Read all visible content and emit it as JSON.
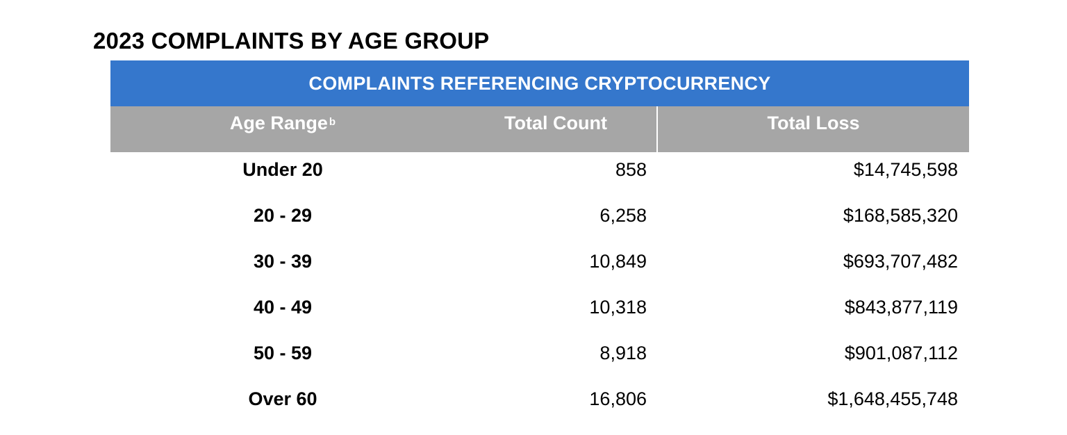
{
  "page_title": "2023 COMPLAINTS BY AGE GROUP",
  "colors": {
    "banner_bg": "#3577cc",
    "header_bg": "#a6a6a6",
    "header_text": "#ffffff"
  },
  "table": {
    "banner": "COMPLAINTS REFERENCING CRYPTOCURRENCY",
    "columns": [
      {
        "label": "Age Range",
        "footnote": "b"
      },
      {
        "label": "Total Count",
        "footnote": ""
      },
      {
        "label": "Total Loss",
        "footnote": ""
      }
    ],
    "rows": [
      {
        "age": "Under 20",
        "count": "858",
        "loss": "$14,745,598"
      },
      {
        "age": "20 - 29",
        "count": "6,258",
        "loss": "$168,585,320"
      },
      {
        "age": "30 - 39",
        "count": "10,849",
        "loss": "$693,707,482"
      },
      {
        "age": "40 - 49",
        "count": "10,318",
        "loss": "$843,877,119"
      },
      {
        "age": "50 - 59",
        "count": "8,918",
        "loss": "$901,087,112"
      },
      {
        "age": "Over 60",
        "count": "16,806",
        "loss": "$1,648,455,748"
      }
    ]
  }
}
